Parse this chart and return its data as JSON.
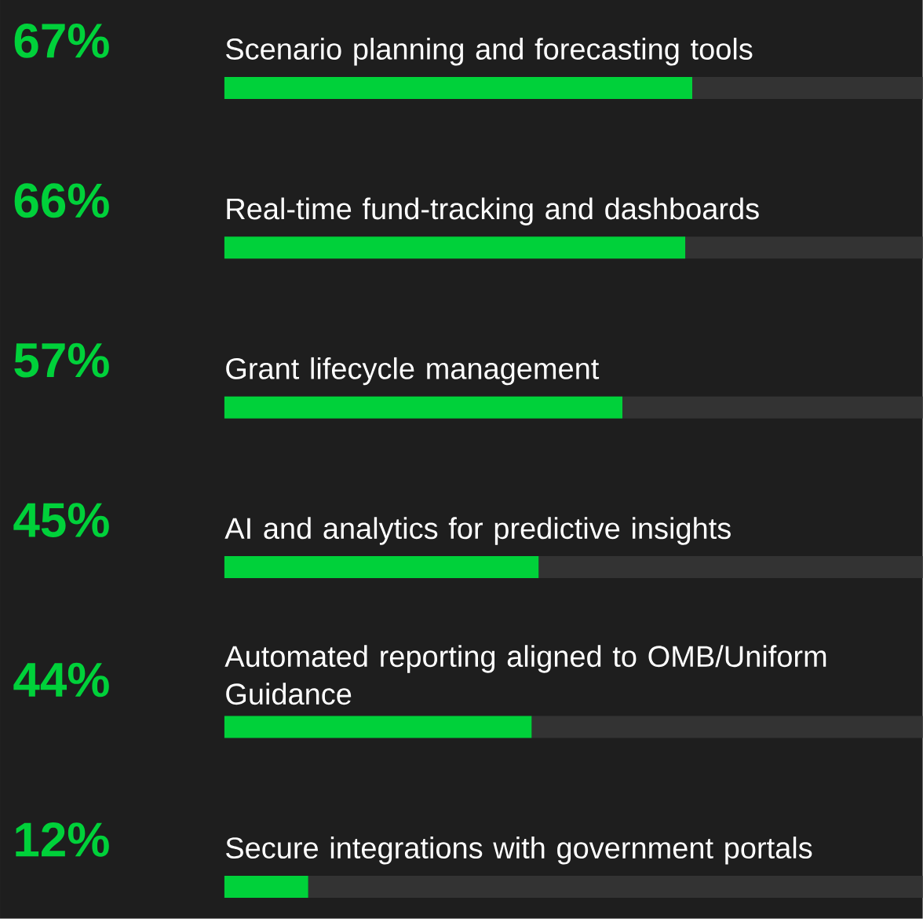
{
  "chart_data": {
    "type": "bar",
    "orientation": "horizontal",
    "stacked": true,
    "categories": [
      "Scenario planning and forecasting tools",
      "Real-time fund-tracking and dashboards",
      "Grant lifecycle management",
      "AI and analytics for predictive insights",
      "Automated reporting aligned to OMB/Uniform Guidance",
      "Secure integrations with government portals"
    ],
    "series": [
      {
        "color": "#00d13a",
        "values": [
          67,
          66,
          57,
          45,
          44,
          12
        ],
        "value_labels": [
          "67%",
          "66%",
          "57%",
          "45%",
          "44%",
          "12%"
        ]
      },
      {
        "color": "#333333",
        "values": [
          33,
          34,
          43,
          55,
          56,
          88
        ]
      }
    ],
    "xlim": [
      0,
      100
    ],
    "tick_labels": false
  }
}
